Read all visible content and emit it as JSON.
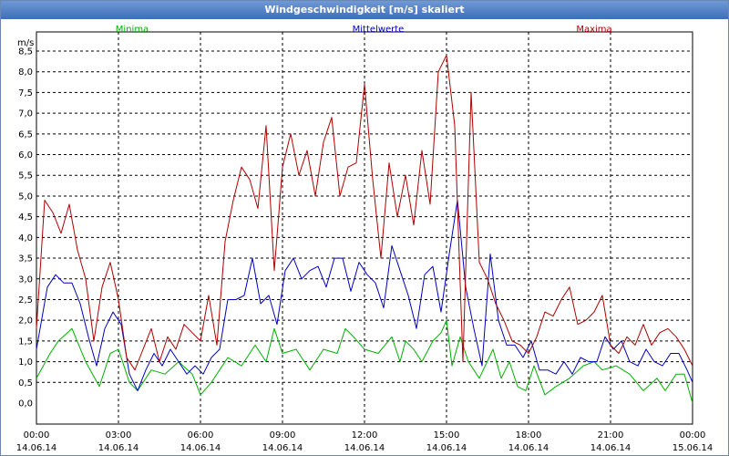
{
  "window": {
    "title": "Windgeschwindigkeit [m/s] skaliert"
  },
  "chart_data": {
    "type": "line",
    "title": "Windgeschwindigkeit [m/s] skaliert",
    "ylabel": "m/s",
    "xlabel": "",
    "ylim": [
      0,
      8.5
    ],
    "xlim": [
      0,
      24
    ],
    "grid": true,
    "y_ticks": [
      "0,0",
      "0,5",
      "1,0",
      "1,5",
      "2,0",
      "2,5",
      "3,0",
      "3,5",
      "4,0",
      "4,5",
      "5,0",
      "5,5",
      "6,0",
      "6,5",
      "7,0",
      "7,5",
      "8,0",
      "8,5"
    ],
    "x_ticks": [
      {
        "time": "00:00",
        "date": "14.06.14"
      },
      {
        "time": "03:00",
        "date": "14.06.14"
      },
      {
        "time": "06:00",
        "date": "14.06.14"
      },
      {
        "time": "09:00",
        "date": "14.06.14"
      },
      {
        "time": "12:00",
        "date": "14.06.14"
      },
      {
        "time": "15:00",
        "date": "14.06.14"
      },
      {
        "time": "18:00",
        "date": "14.06.14"
      },
      {
        "time": "21:00",
        "date": "14.06.14"
      },
      {
        "time": "00:00",
        "date": "15.06.14"
      }
    ],
    "legend": [
      "Minima",
      "Mittelwerte",
      "Maxima"
    ],
    "series": [
      {
        "name": "Minima",
        "color": "#00b000",
        "x": [
          0,
          0.5,
          0.8,
          1.3,
          1.8,
          2.3,
          2.7,
          3.0,
          3.4,
          3.7,
          4.2,
          4.7,
          5.2,
          5.7,
          6.0,
          6.4,
          7.0,
          7.5,
          8.0,
          8.4,
          8.7,
          9.0,
          9.5,
          10.0,
          10.5,
          11.0,
          11.3,
          11.6,
          12.0,
          12.5,
          13.0,
          13.3,
          13.5,
          13.8,
          14.1,
          14.5,
          14.8,
          15.0,
          15.2,
          15.5,
          15.8,
          16.2,
          16.7,
          17.0,
          17.3,
          17.6,
          17.9,
          18.2,
          18.6,
          19.0,
          19.5,
          20.0,
          20.4,
          20.7,
          21.2,
          21.7,
          22.2,
          22.7,
          23.0,
          23.4,
          23.7,
          24.0
        ],
        "values": [
          0.6,
          1.2,
          1.5,
          1.8,
          1.0,
          0.4,
          1.2,
          1.3,
          0.5,
          0.3,
          0.8,
          0.7,
          1.0,
          0.7,
          0.2,
          0.5,
          1.1,
          0.9,
          1.4,
          1.0,
          1.8,
          1.2,
          1.3,
          0.8,
          1.3,
          1.2,
          1.8,
          1.6,
          1.3,
          1.2,
          1.6,
          1.0,
          1.5,
          1.3,
          1.0,
          1.5,
          1.7,
          2.0,
          0.9,
          1.6,
          1.0,
          0.6,
          1.3,
          0.6,
          1.0,
          0.4,
          0.3,
          0.9,
          0.2,
          0.4,
          0.6,
          0.9,
          1.0,
          0.8,
          0.9,
          0.7,
          0.3,
          0.6,
          0.3,
          0.7,
          0.7,
          0.0
        ]
      },
      {
        "name": "Mittelwerte",
        "color": "#0000c0",
        "x": [
          0,
          0.4,
          0.7,
          1.0,
          1.3,
          1.6,
          1.9,
          2.2,
          2.5,
          2.8,
          3.1,
          3.4,
          3.7,
          4.0,
          4.3,
          4.6,
          4.9,
          5.2,
          5.5,
          5.8,
          6.1,
          6.4,
          6.7,
          7.0,
          7.3,
          7.6,
          7.9,
          8.2,
          8.5,
          8.8,
          9.1,
          9.4,
          9.7,
          10.0,
          10.3,
          10.6,
          10.9,
          11.2,
          11.5,
          11.8,
          12.1,
          12.4,
          12.7,
          13.0,
          13.3,
          13.6,
          13.9,
          14.2,
          14.5,
          14.8,
          15.1,
          15.4,
          15.7,
          16.0,
          16.3,
          16.6,
          16.9,
          17.2,
          17.5,
          17.8,
          18.1,
          18.4,
          18.7,
          19.0,
          19.3,
          19.6,
          19.9,
          20.2,
          20.5,
          20.8,
          21.1,
          21.4,
          21.7,
          22.0,
          22.3,
          22.6,
          22.9,
          23.2,
          23.5,
          23.8,
          24.0
        ],
        "values": [
          1.3,
          2.8,
          3.1,
          2.9,
          2.9,
          2.4,
          1.6,
          0.9,
          1.8,
          2.2,
          1.9,
          0.7,
          0.3,
          0.8,
          1.2,
          0.9,
          1.3,
          1.0,
          0.7,
          0.9,
          0.7,
          1.1,
          1.3,
          2.5,
          2.5,
          2.6,
          3.5,
          2.4,
          2.6,
          1.9,
          3.2,
          3.5,
          3.0,
          3.2,
          3.3,
          2.8,
          3.5,
          3.5,
          2.7,
          3.4,
          3.1,
          2.9,
          2.3,
          3.8,
          3.2,
          2.6,
          1.8,
          3.1,
          3.3,
          2.2,
          3.6,
          4.9,
          2.8,
          1.8,
          0.9,
          3.6,
          2.0,
          1.4,
          1.4,
          1.1,
          1.5,
          0.8,
          0.8,
          0.7,
          1.0,
          0.7,
          1.1,
          1.0,
          1.0,
          1.6,
          1.3,
          1.5,
          1.0,
          0.9,
          1.3,
          1.0,
          0.9,
          1.2,
          1.2,
          0.8,
          0.5
        ]
      },
      {
        "name": "Maxima",
        "color": "#b00000",
        "x": [
          0,
          0.3,
          0.6,
          0.9,
          1.2,
          1.5,
          1.8,
          2.1,
          2.4,
          2.7,
          3.0,
          3.3,
          3.6,
          3.9,
          4.2,
          4.5,
          4.8,
          5.1,
          5.4,
          5.7,
          6.0,
          6.3,
          6.6,
          6.9,
          7.2,
          7.5,
          7.8,
          8.1,
          8.4,
          8.7,
          9.0,
          9.3,
          9.6,
          9.9,
          10.2,
          10.5,
          10.8,
          11.1,
          11.4,
          11.7,
          12.0,
          12.3,
          12.6,
          12.9,
          13.2,
          13.5,
          13.8,
          14.1,
          14.4,
          14.7,
          15.0,
          15.3,
          15.6,
          15.9,
          16.2,
          16.5,
          16.8,
          17.1,
          17.4,
          17.7,
          18.0,
          18.3,
          18.6,
          18.9,
          19.2,
          19.5,
          19.8,
          20.1,
          20.4,
          20.7,
          21.0,
          21.3,
          21.6,
          21.9,
          22.2,
          22.5,
          22.8,
          23.1,
          23.4,
          23.7,
          24.0
        ],
        "values": [
          1.8,
          4.9,
          4.6,
          4.1,
          4.8,
          3.7,
          3.0,
          1.5,
          2.8,
          3.4,
          2.5,
          1.1,
          0.8,
          1.3,
          1.8,
          1.0,
          1.6,
          1.3,
          1.9,
          1.7,
          1.5,
          2.6,
          1.4,
          3.9,
          4.9,
          5.7,
          5.4,
          4.7,
          6.7,
          3.2,
          5.7,
          6.5,
          5.5,
          6.1,
          5.0,
          6.3,
          6.9,
          5.0,
          5.7,
          5.8,
          7.7,
          5.4,
          3.5,
          5.8,
          4.5,
          5.5,
          4.3,
          6.1,
          4.8,
          8.0,
          8.4,
          6.7,
          1.0,
          7.5,
          3.4,
          3.0,
          2.4,
          2.0,
          1.5,
          1.4,
          1.2,
          1.6,
          2.2,
          2.1,
          2.5,
          2.8,
          1.9,
          2.0,
          2.2,
          2.6,
          1.4,
          1.2,
          1.6,
          1.4,
          1.9,
          1.4,
          1.7,
          1.8,
          1.6,
          1.3,
          0.9
        ]
      }
    ]
  }
}
